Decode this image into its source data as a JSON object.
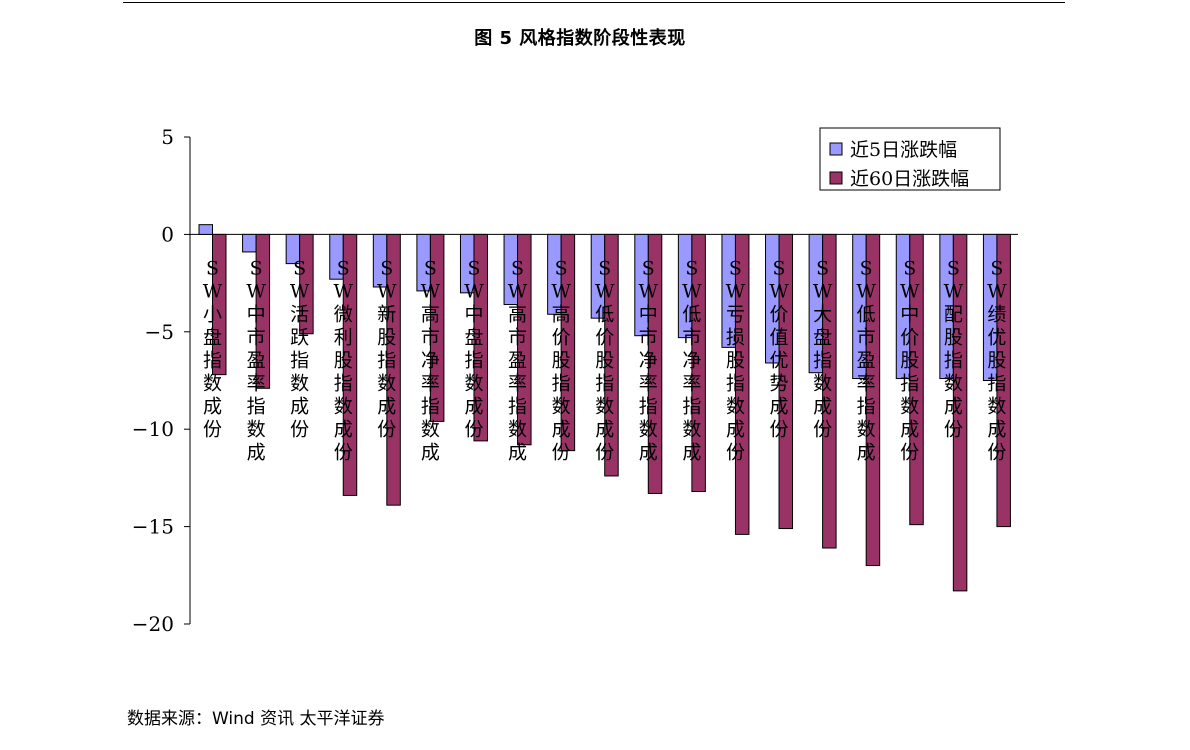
{
  "figure": {
    "title": "图 5 风格指数阶段性表现",
    "source": "数据来源：Wind 资讯 太平洋证券"
  },
  "chart_data": {
    "type": "bar",
    "title": "",
    "xlabel": "",
    "ylabel": "",
    "ylim": [
      -20,
      5
    ],
    "yticks": [
      5,
      0,
      -5,
      -10,
      -15,
      -20
    ],
    "ytick_labels": [
      "5",
      "0",
      "−5",
      "−10",
      "−15",
      "−20"
    ],
    "grid": false,
    "legend_position": "top-right",
    "categories": [
      "SW小盘指数成份",
      "SW中市盈率指数成",
      "SW活跃指数成份",
      "SW微利股指数成份",
      "SW新股指数成份",
      "SW高市净率指数成",
      "SW中盘指数成份",
      "SW高市盈率指数成",
      "SW高价股指数成份",
      "SW低价股指数成份",
      "SW中市净率指数成",
      "SW低市净率指数成",
      "SW亏损股指数成份",
      "SW价值优势成份",
      "SW大盘指数成份",
      "SW低市盈率指数成",
      "SW中价股指数成份",
      "SW配股指数成份",
      "SW绩优股指数成份"
    ],
    "series": [
      {
        "name": "近5日涨跌幅",
        "color": "#9999ff",
        "values": [
          0.5,
          -0.9,
          -1.5,
          -2.3,
          -2.7,
          -2.9,
          -3.0,
          -3.6,
          -4.1,
          -4.3,
          -5.2,
          -5.3,
          -5.8,
          -6.6,
          -7.1,
          -7.4,
          -7.4,
          -7.4,
          -7.5
        ]
      },
      {
        "name": "近60日涨跌幅",
        "color": "#993366",
        "values": [
          -7.2,
          -7.9,
          -5.1,
          -13.4,
          -13.9,
          -9.6,
          -10.6,
          -10.8,
          -11.1,
          -12.4,
          -13.3,
          -13.2,
          -15.4,
          -15.1,
          -16.1,
          -17.0,
          -14.9,
          -18.3,
          -15.0
        ]
      }
    ]
  }
}
